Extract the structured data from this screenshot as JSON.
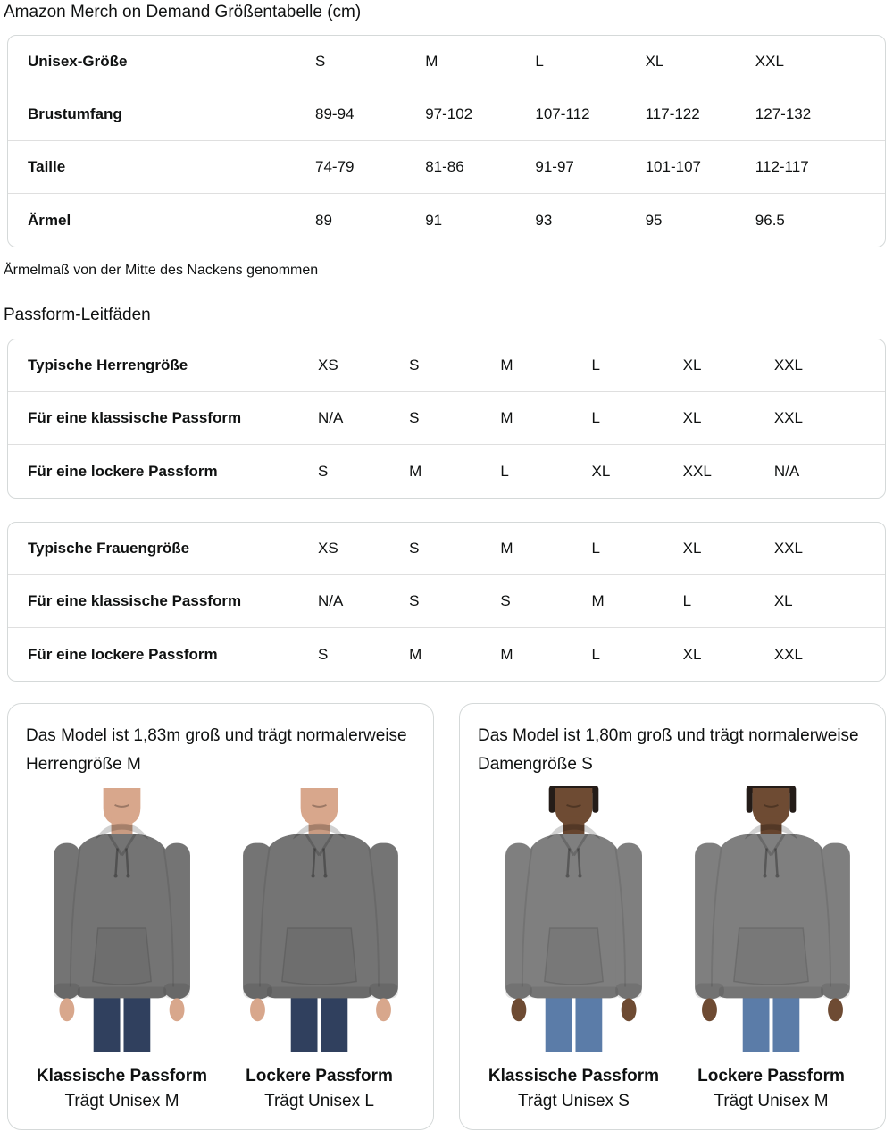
{
  "page": {
    "title": "Amazon Merch on Demand Größentabelle (cm)",
    "note": "Ärmelmaß von der Mitte des Nackens genommen",
    "fit_heading": "Passform-Leitfäden"
  },
  "size_table": {
    "header": {
      "label": "Unisex-Größe",
      "sizes": [
        "S",
        "M",
        "L",
        "XL",
        "XXL"
      ]
    },
    "rows": [
      {
        "label": "Brustumfang",
        "values": [
          "89-94",
          "97-102",
          "107-112",
          "117-122",
          "127-132"
        ]
      },
      {
        "label": "Taille",
        "values": [
          "74-79",
          "81-86",
          "91-97",
          "101-107",
          "112-117"
        ]
      },
      {
        "label": "Ärmel",
        "values": [
          "89",
          "91",
          "93",
          "95",
          "96.5"
        ]
      }
    ]
  },
  "men_fit_table": {
    "rows": [
      {
        "label": "Typische Herrengröße",
        "values": [
          "XS",
          "S",
          "M",
          "L",
          "XL",
          "XXL"
        ]
      },
      {
        "label": "Für eine klassische Passform",
        "values": [
          "N/A",
          "S",
          "M",
          "L",
          "XL",
          "XXL"
        ]
      },
      {
        "label": "Für eine lockere Passform",
        "values": [
          "S",
          "M",
          "L",
          "XL",
          "XXL",
          "N/A"
        ]
      }
    ]
  },
  "women_fit_table": {
    "rows": [
      {
        "label": "Typische Frauengröße",
        "values": [
          "XS",
          "S",
          "M",
          "L",
          "XL",
          "XXL"
        ]
      },
      {
        "label": "Für eine klassische Passform",
        "values": [
          "N/A",
          "S",
          "S",
          "M",
          "L",
          "XL"
        ]
      },
      {
        "label": "Für eine lockere Passform",
        "values": [
          "S",
          "M",
          "M",
          "L",
          "XL",
          "XXL"
        ]
      }
    ]
  },
  "model_cards": [
    {
      "description": "Das Model ist 1,83m groß und trägt normalerweise Herrengröße M",
      "figures": [
        {
          "fit_label": "Klassische Passform",
          "size_label": "Trägt Unisex M"
        },
        {
          "fit_label": "Lockere Passform",
          "size_label": "Trägt Unisex L"
        }
      ]
    },
    {
      "description": "Das Model ist 1,80m groß und trägt normalerweise Damengröße S",
      "figures": [
        {
          "fit_label": "Klassische Passform",
          "size_label": "Trägt Unisex S"
        },
        {
          "fit_label": "Lockere Passform",
          "size_label": "Trägt Unisex M"
        }
      ]
    }
  ],
  "colors": {
    "text": "#0F1111",
    "table_border": "#D5D9D9",
    "hoodie_men": "#747474",
    "hoodie_women": "#7F7F7F",
    "jeans_men": "#30405E",
    "jeans_women": "#5B7CA8",
    "skin_men": "#D8A78C",
    "skin_women": "#6E4B33"
  }
}
